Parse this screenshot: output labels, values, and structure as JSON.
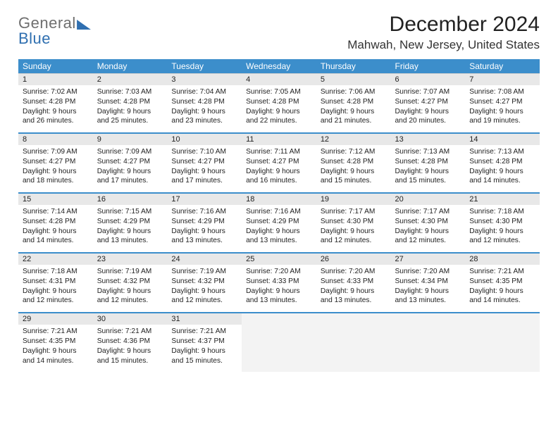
{
  "brand": {
    "part1": "General",
    "part2": "Blue"
  },
  "title": "December 2024",
  "location": "Mahwah, New Jersey, United States",
  "colors": {
    "header_bg": "#3c8ecb",
    "header_text": "#ffffff",
    "daynum_bg": "#e8e8e8",
    "empty_bg": "#f3f3f3",
    "row_divider": "#3c8ecb",
    "logo_gray": "#6f6f6f",
    "logo_blue": "#2f6fb0",
    "body_text": "#222222",
    "page_bg": "#ffffff"
  },
  "typography": {
    "title_fontsize": 30,
    "location_fontsize": 17,
    "dow_fontsize": 12,
    "daynum_fontsize": 11,
    "detail_fontsize": 10.2,
    "logo_fontsize": 22
  },
  "dow": [
    "Sunday",
    "Monday",
    "Tuesday",
    "Wednesday",
    "Thursday",
    "Friday",
    "Saturday"
  ],
  "weeks": [
    [
      {
        "num": "1",
        "sunrise": "Sunrise: 7:02 AM",
        "sunset": "Sunset: 4:28 PM",
        "day1": "Daylight: 9 hours",
        "day2": "and 26 minutes."
      },
      {
        "num": "2",
        "sunrise": "Sunrise: 7:03 AM",
        "sunset": "Sunset: 4:28 PM",
        "day1": "Daylight: 9 hours",
        "day2": "and 25 minutes."
      },
      {
        "num": "3",
        "sunrise": "Sunrise: 7:04 AM",
        "sunset": "Sunset: 4:28 PM",
        "day1": "Daylight: 9 hours",
        "day2": "and 23 minutes."
      },
      {
        "num": "4",
        "sunrise": "Sunrise: 7:05 AM",
        "sunset": "Sunset: 4:28 PM",
        "day1": "Daylight: 9 hours",
        "day2": "and 22 minutes."
      },
      {
        "num": "5",
        "sunrise": "Sunrise: 7:06 AM",
        "sunset": "Sunset: 4:28 PM",
        "day1": "Daylight: 9 hours",
        "day2": "and 21 minutes."
      },
      {
        "num": "6",
        "sunrise": "Sunrise: 7:07 AM",
        "sunset": "Sunset: 4:27 PM",
        "day1": "Daylight: 9 hours",
        "day2": "and 20 minutes."
      },
      {
        "num": "7",
        "sunrise": "Sunrise: 7:08 AM",
        "sunset": "Sunset: 4:27 PM",
        "day1": "Daylight: 9 hours",
        "day2": "and 19 minutes."
      }
    ],
    [
      {
        "num": "8",
        "sunrise": "Sunrise: 7:09 AM",
        "sunset": "Sunset: 4:27 PM",
        "day1": "Daylight: 9 hours",
        "day2": "and 18 minutes."
      },
      {
        "num": "9",
        "sunrise": "Sunrise: 7:09 AM",
        "sunset": "Sunset: 4:27 PM",
        "day1": "Daylight: 9 hours",
        "day2": "and 17 minutes."
      },
      {
        "num": "10",
        "sunrise": "Sunrise: 7:10 AM",
        "sunset": "Sunset: 4:27 PM",
        "day1": "Daylight: 9 hours",
        "day2": "and 17 minutes."
      },
      {
        "num": "11",
        "sunrise": "Sunrise: 7:11 AM",
        "sunset": "Sunset: 4:27 PM",
        "day1": "Daylight: 9 hours",
        "day2": "and 16 minutes."
      },
      {
        "num": "12",
        "sunrise": "Sunrise: 7:12 AM",
        "sunset": "Sunset: 4:28 PM",
        "day1": "Daylight: 9 hours",
        "day2": "and 15 minutes."
      },
      {
        "num": "13",
        "sunrise": "Sunrise: 7:13 AM",
        "sunset": "Sunset: 4:28 PM",
        "day1": "Daylight: 9 hours",
        "day2": "and 15 minutes."
      },
      {
        "num": "14",
        "sunrise": "Sunrise: 7:13 AM",
        "sunset": "Sunset: 4:28 PM",
        "day1": "Daylight: 9 hours",
        "day2": "and 14 minutes."
      }
    ],
    [
      {
        "num": "15",
        "sunrise": "Sunrise: 7:14 AM",
        "sunset": "Sunset: 4:28 PM",
        "day1": "Daylight: 9 hours",
        "day2": "and 14 minutes."
      },
      {
        "num": "16",
        "sunrise": "Sunrise: 7:15 AM",
        "sunset": "Sunset: 4:29 PM",
        "day1": "Daylight: 9 hours",
        "day2": "and 13 minutes."
      },
      {
        "num": "17",
        "sunrise": "Sunrise: 7:16 AM",
        "sunset": "Sunset: 4:29 PM",
        "day1": "Daylight: 9 hours",
        "day2": "and 13 minutes."
      },
      {
        "num": "18",
        "sunrise": "Sunrise: 7:16 AM",
        "sunset": "Sunset: 4:29 PM",
        "day1": "Daylight: 9 hours",
        "day2": "and 13 minutes."
      },
      {
        "num": "19",
        "sunrise": "Sunrise: 7:17 AM",
        "sunset": "Sunset: 4:30 PM",
        "day1": "Daylight: 9 hours",
        "day2": "and 12 minutes."
      },
      {
        "num": "20",
        "sunrise": "Sunrise: 7:17 AM",
        "sunset": "Sunset: 4:30 PM",
        "day1": "Daylight: 9 hours",
        "day2": "and 12 minutes."
      },
      {
        "num": "21",
        "sunrise": "Sunrise: 7:18 AM",
        "sunset": "Sunset: 4:30 PM",
        "day1": "Daylight: 9 hours",
        "day2": "and 12 minutes."
      }
    ],
    [
      {
        "num": "22",
        "sunrise": "Sunrise: 7:18 AM",
        "sunset": "Sunset: 4:31 PM",
        "day1": "Daylight: 9 hours",
        "day2": "and 12 minutes."
      },
      {
        "num": "23",
        "sunrise": "Sunrise: 7:19 AM",
        "sunset": "Sunset: 4:32 PM",
        "day1": "Daylight: 9 hours",
        "day2": "and 12 minutes."
      },
      {
        "num": "24",
        "sunrise": "Sunrise: 7:19 AM",
        "sunset": "Sunset: 4:32 PM",
        "day1": "Daylight: 9 hours",
        "day2": "and 12 minutes."
      },
      {
        "num": "25",
        "sunrise": "Sunrise: 7:20 AM",
        "sunset": "Sunset: 4:33 PM",
        "day1": "Daylight: 9 hours",
        "day2": "and 13 minutes."
      },
      {
        "num": "26",
        "sunrise": "Sunrise: 7:20 AM",
        "sunset": "Sunset: 4:33 PM",
        "day1": "Daylight: 9 hours",
        "day2": "and 13 minutes."
      },
      {
        "num": "27",
        "sunrise": "Sunrise: 7:20 AM",
        "sunset": "Sunset: 4:34 PM",
        "day1": "Daylight: 9 hours",
        "day2": "and 13 minutes."
      },
      {
        "num": "28",
        "sunrise": "Sunrise: 7:21 AM",
        "sunset": "Sunset: 4:35 PM",
        "day1": "Daylight: 9 hours",
        "day2": "and 14 minutes."
      }
    ],
    [
      {
        "num": "29",
        "sunrise": "Sunrise: 7:21 AM",
        "sunset": "Sunset: 4:35 PM",
        "day1": "Daylight: 9 hours",
        "day2": "and 14 minutes."
      },
      {
        "num": "30",
        "sunrise": "Sunrise: 7:21 AM",
        "sunset": "Sunset: 4:36 PM",
        "day1": "Daylight: 9 hours",
        "day2": "and 15 minutes."
      },
      {
        "num": "31",
        "sunrise": "Sunrise: 7:21 AM",
        "sunset": "Sunset: 4:37 PM",
        "day1": "Daylight: 9 hours",
        "day2": "and 15 minutes."
      },
      {
        "empty": true
      },
      {
        "empty": true
      },
      {
        "empty": true
      },
      {
        "empty": true
      }
    ]
  ]
}
